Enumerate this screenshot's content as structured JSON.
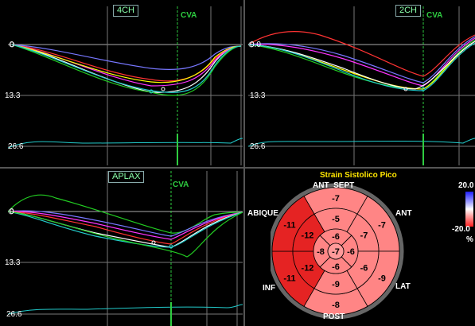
{
  "views": [
    {
      "tag": "4CH",
      "cva_label": "CVA",
      "y_top": "0",
      "y_mid": "13.3",
      "y_bottom": "26.6"
    },
    {
      "tag": "2CH",
      "cva_label": "CVA",
      "y_top": "0.0",
      "y_mid": "13.3",
      "y_bottom": "26.6"
    },
    {
      "tag": "APLAX",
      "cva_label": "CVA",
      "y_top": "0",
      "y_mid": "13.3",
      "y_bottom": "26.6"
    }
  ],
  "bullseye": {
    "title": "Strain Sistolico Pico",
    "labels": {
      "ant_sept": "ANT_SEPT",
      "ant": "ANT",
      "sept": "ABIQUE",
      "lat": "LAT",
      "inf": "INF",
      "post": "POST"
    },
    "outer_ring": [
      -7,
      -7,
      -9,
      -8,
      -11,
      -11
    ],
    "mid_ring": [
      -5,
      -7,
      -6,
      -9,
      -12,
      -12
    ],
    "apical_ring": [
      -6,
      -6,
      -6,
      -8
    ],
    "apex": -7,
    "colors": {
      "light": "#ff8585",
      "dark": "#e52323",
      "pink": "#ff9a9a"
    }
  },
  "scale": {
    "max": "20.0",
    "min": "-20.0",
    "unit": "%"
  }
}
